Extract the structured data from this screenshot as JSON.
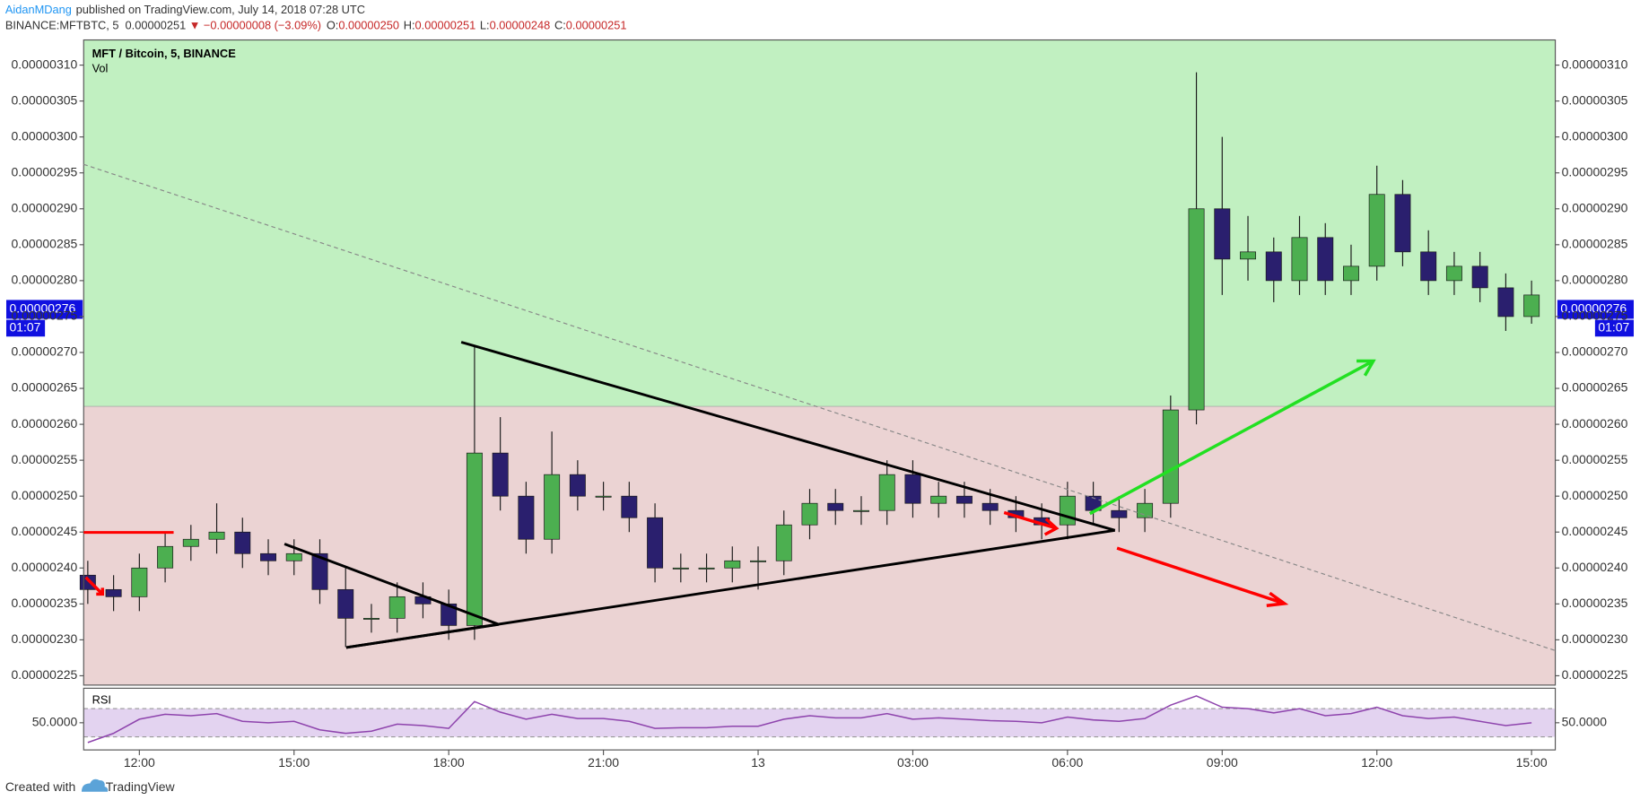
{
  "header": {
    "author": "AidanMDang",
    "published": "published on TradingView.com, July 14, 2018 07:28 UTC",
    "symbol": "BINANCE:MFTBTC, 5",
    "last": "0.00000251",
    "change_arrow": "▼",
    "change": "−0.00000008 (−3.09%)",
    "ohlc": [
      {
        "label": "O:",
        "value": "0.00000250"
      },
      {
        "label": "H:",
        "value": "0.00000251"
      },
      {
        "label": "L:",
        "value": "0.00000248"
      },
      {
        "label": "C:",
        "value": "0.00000251"
      }
    ]
  },
  "footer": {
    "created_with": "Created with",
    "brand": "TradingView"
  },
  "chart_data": [
    {
      "type": "candlestick",
      "title": "MFT / Bitcoin, 5, BINANCE",
      "subtitle": "Vol",
      "x": [
        11,
        11.5,
        12,
        12.5,
        13,
        13.5,
        14,
        14.5,
        15,
        15.5,
        16,
        16.5,
        17,
        17.5,
        18,
        18.5,
        19,
        19.5,
        20,
        20.5,
        21,
        21.5,
        22,
        22.5,
        23,
        23.5,
        24,
        24.5,
        25,
        25.5,
        26,
        26.5,
        27,
        27.5,
        28,
        28.5,
        29,
        29.5,
        30,
        30.5,
        31,
        31.5,
        32,
        32.5,
        33,
        33.5,
        34,
        34.5,
        35,
        35.5,
        36,
        36.5,
        37,
        37.5,
        38,
        38.5,
        39
      ],
      "open": [
        2.39e-06,
        2.37e-06,
        2.36e-06,
        2.4e-06,
        2.43e-06,
        2.44e-06,
        2.45e-06,
        2.42e-06,
        2.41e-06,
        2.42e-06,
        2.37e-06,
        2.33e-06,
        2.33e-06,
        2.36e-06,
        2.35e-06,
        2.32e-06,
        2.56e-06,
        2.5e-06,
        2.44e-06,
        2.53e-06,
        2.5e-06,
        2.5e-06,
        2.47e-06,
        2.4e-06,
        2.4e-06,
        2.4e-06,
        2.41e-06,
        2.41e-06,
        2.46e-06,
        2.49e-06,
        2.48e-06,
        2.48e-06,
        2.53e-06,
        2.49e-06,
        2.5e-06,
        2.49e-06,
        2.48e-06,
        2.47e-06,
        2.46e-06,
        2.5e-06,
        2.48e-06,
        2.47e-06,
        2.49e-06,
        2.62e-06,
        2.9e-06,
        2.83e-06,
        2.84e-06,
        2.8e-06,
        2.86e-06,
        2.8e-06,
        2.82e-06,
        2.92e-06,
        2.84e-06,
        2.8e-06,
        2.82e-06,
        2.79e-06,
        2.75e-06
      ],
      "high": [
        2.41e-06,
        2.39e-06,
        2.42e-06,
        2.45e-06,
        2.46e-06,
        2.49e-06,
        2.47e-06,
        2.44e-06,
        2.44e-06,
        2.44e-06,
        2.4e-06,
        2.35e-06,
        2.38e-06,
        2.38e-06,
        2.37e-06,
        2.71e-06,
        2.61e-06,
        2.52e-06,
        2.59e-06,
        2.55e-06,
        2.52e-06,
        2.52e-06,
        2.49e-06,
        2.42e-06,
        2.42e-06,
        2.43e-06,
        2.43e-06,
        2.48e-06,
        2.51e-06,
        2.51e-06,
        2.5e-06,
        2.55e-06,
        2.55e-06,
        2.52e-06,
        2.52e-06,
        2.51e-06,
        2.5e-06,
        2.49e-06,
        2.52e-06,
        2.52e-06,
        2.5e-06,
        2.51e-06,
        2.64e-06,
        3.09e-06,
        3e-06,
        2.89e-06,
        2.86e-06,
        2.89e-06,
        2.88e-06,
        2.85e-06,
        2.96e-06,
        2.94e-06,
        2.87e-06,
        2.84e-06,
        2.84e-06,
        2.81e-06,
        2.8e-06
      ],
      "low": [
        2.35e-06,
        2.34e-06,
        2.34e-06,
        2.38e-06,
        2.41e-06,
        2.42e-06,
        2.4e-06,
        2.39e-06,
        2.39e-06,
        2.35e-06,
        2.29e-06,
        2.31e-06,
        2.31e-06,
        2.33e-06,
        2.3e-06,
        2.3e-06,
        2.48e-06,
        2.42e-06,
        2.42e-06,
        2.48e-06,
        2.48e-06,
        2.45e-06,
        2.38e-06,
        2.38e-06,
        2.38e-06,
        2.38e-06,
        2.37e-06,
        2.39e-06,
        2.44e-06,
        2.46e-06,
        2.46e-06,
        2.46e-06,
        2.47e-06,
        2.47e-06,
        2.47e-06,
        2.46e-06,
        2.45e-06,
        2.44e-06,
        2.44e-06,
        2.46e-06,
        2.45e-06,
        2.45e-06,
        2.47e-06,
        2.6e-06,
        2.78e-06,
        2.8e-06,
        2.77e-06,
        2.78e-06,
        2.78e-06,
        2.78e-06,
        2.8e-06,
        2.82e-06,
        2.78e-06,
        2.78e-06,
        2.77e-06,
        2.73e-06,
        2.74e-06
      ],
      "close": [
        2.37e-06,
        2.36e-06,
        2.4e-06,
        2.43e-06,
        2.44e-06,
        2.45e-06,
        2.42e-06,
        2.41e-06,
        2.42e-06,
        2.37e-06,
        2.33e-06,
        2.33e-06,
        2.36e-06,
        2.35e-06,
        2.32e-06,
        2.56e-06,
        2.5e-06,
        2.44e-06,
        2.53e-06,
        2.5e-06,
        2.5e-06,
        2.47e-06,
        2.4e-06,
        2.4e-06,
        2.4e-06,
        2.41e-06,
        2.41e-06,
        2.46e-06,
        2.49e-06,
        2.48e-06,
        2.48e-06,
        2.53e-06,
        2.49e-06,
        2.5e-06,
        2.49e-06,
        2.48e-06,
        2.47e-06,
        2.46e-06,
        2.5e-06,
        2.48e-06,
        2.47e-06,
        2.49e-06,
        2.62e-06,
        2.9e-06,
        2.83e-06,
        2.84e-06,
        2.8e-06,
        2.86e-06,
        2.8e-06,
        2.82e-06,
        2.92e-06,
        2.84e-06,
        2.8e-06,
        2.82e-06,
        2.79e-06,
        2.75e-06,
        2.78e-06
      ],
      "up_color": "#4caf50",
      "down_color": "#2a1f6e",
      "wick_color": "#1a1a1a",
      "zone_split": 2.625e-06,
      "zone_above_color": "#c1f0c1",
      "zone_below_color": "#ebd3d3",
      "last_price": 2.76e-06,
      "countdown": "01:07",
      "xlim": [
        10.92,
        39.46
      ],
      "xticks": [
        {
          "value": 12,
          "label": "12:00"
        },
        {
          "value": 15,
          "label": "15:00"
        },
        {
          "value": 18,
          "label": "18:00"
        },
        {
          "value": 21,
          "label": "21:00"
        },
        {
          "value": 24,
          "label": "13"
        },
        {
          "value": 27,
          "label": "03:00"
        },
        {
          "value": 30,
          "label": "06:00"
        },
        {
          "value": 33,
          "label": "09:00"
        },
        {
          "value": 36,
          "label": "12:00"
        },
        {
          "value": 39,
          "label": "15:00"
        }
      ],
      "ylim": [
        2.237e-06,
        3.135e-06
      ],
      "yticks": [
        {
          "value": 2.25e-06,
          "label": "0.00000225"
        },
        {
          "value": 2.3e-06,
          "label": "0.00000230"
        },
        {
          "value": 2.35e-06,
          "label": "0.00000235"
        },
        {
          "value": 2.4e-06,
          "label": "0.00000240"
        },
        {
          "value": 2.45e-06,
          "label": "0.00000245"
        },
        {
          "value": 2.5e-06,
          "label": "0.00000250"
        },
        {
          "value": 2.55e-06,
          "label": "0.00000255"
        },
        {
          "value": 2.6e-06,
          "label": "0.00000260"
        },
        {
          "value": 2.65e-06,
          "label": "0.00000265"
        },
        {
          "value": 2.7e-06,
          "label": "0.00000270"
        },
        {
          "value": 2.75e-06,
          "label": "0.00000275"
        },
        {
          "value": 2.8e-06,
          "label": "0.00000280"
        },
        {
          "value": 2.85e-06,
          "label": "0.00000285"
        },
        {
          "value": 2.9e-06,
          "label": "0.00000290"
        },
        {
          "value": 2.95e-06,
          "label": "0.00000295"
        },
        {
          "value": 3e-06,
          "label": "0.00000300"
        },
        {
          "value": 3.05e-06,
          "label": "0.00000305"
        },
        {
          "value": 3.1e-06,
          "label": "0.00000310"
        }
      ]
    },
    {
      "type": "line",
      "title": "RSI",
      "x": [
        11,
        11.5,
        12,
        12.5,
        13,
        13.5,
        14,
        14.5,
        15,
        15.5,
        16,
        16.5,
        17,
        17.5,
        18,
        18.5,
        19,
        19.5,
        20,
        20.5,
        21,
        21.5,
        22,
        22.5,
        23,
        23.5,
        24,
        24.5,
        25,
        25.5,
        26,
        26.5,
        27,
        27.5,
        28,
        28.5,
        29,
        29.5,
        30,
        30.5,
        31,
        31.5,
        32,
        32.5,
        33,
        33.5,
        34,
        34.5,
        35,
        35.5,
        36,
        36.5,
        37,
        37.5,
        38,
        38.5,
        39
      ],
      "values": [
        22,
        35,
        55,
        62,
        60,
        63,
        52,
        50,
        52,
        40,
        35,
        38,
        48,
        46,
        42,
        80,
        65,
        55,
        62,
        56,
        56,
        52,
        42,
        43,
        43,
        45,
        45,
        55,
        60,
        57,
        57,
        63,
        55,
        57,
        55,
        53,
        52,
        50,
        58,
        54,
        52,
        56,
        75,
        88,
        72,
        70,
        64,
        70,
        60,
        63,
        72,
        60,
        56,
        58,
        52,
        46,
        50
      ],
      "color": "#8e44ad",
      "band": [
        30,
        70
      ],
      "band_color": "#e3d3f0",
      "xlim": [
        10.92,
        39.46
      ],
      "ylim": [
        11.5,
        98.9
      ],
      "yticks": [
        {
          "value": 50,
          "label": "50.0000"
        }
      ]
    }
  ]
}
